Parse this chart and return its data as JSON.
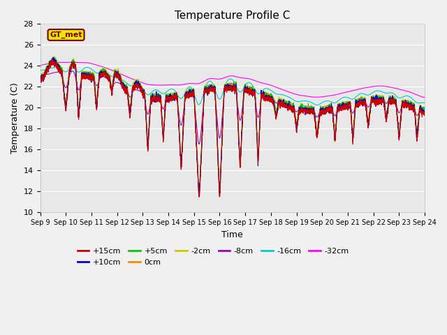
{
  "title": "Temperature Profile C",
  "xlabel": "Time",
  "ylabel": "Temperature (C)",
  "ylim": [
    10,
    28
  ],
  "xlim": [
    0,
    15
  ],
  "x_tick_labels": [
    "Sep 9",
    "Sep 10",
    "Sep 11",
    "Sep 12",
    "Sep 13",
    "Sep 14",
    "Sep 15",
    "Sep 16",
    "Sep 17",
    "Sep 18",
    "Sep 19",
    "Sep 20",
    "Sep 21",
    "Sep 22",
    "Sep 23",
    "Sep 24"
  ],
  "legend_entries": [
    "+15cm",
    "+10cm",
    "+5cm",
    "0cm",
    "-2cm",
    "-8cm",
    "-16cm",
    "-32cm"
  ],
  "legend_colors": [
    "#cc0000",
    "#0000cc",
    "#00cc00",
    "#ff8800",
    "#cccc00",
    "#aa00aa",
    "#00cccc",
    "#ff00ff"
  ],
  "gt_met_box_color": "#cccc00",
  "gt_met_text_color": "#800000",
  "background_color": "#e8e8e8",
  "grid_color": "#ffffff",
  "n_points": 3600
}
